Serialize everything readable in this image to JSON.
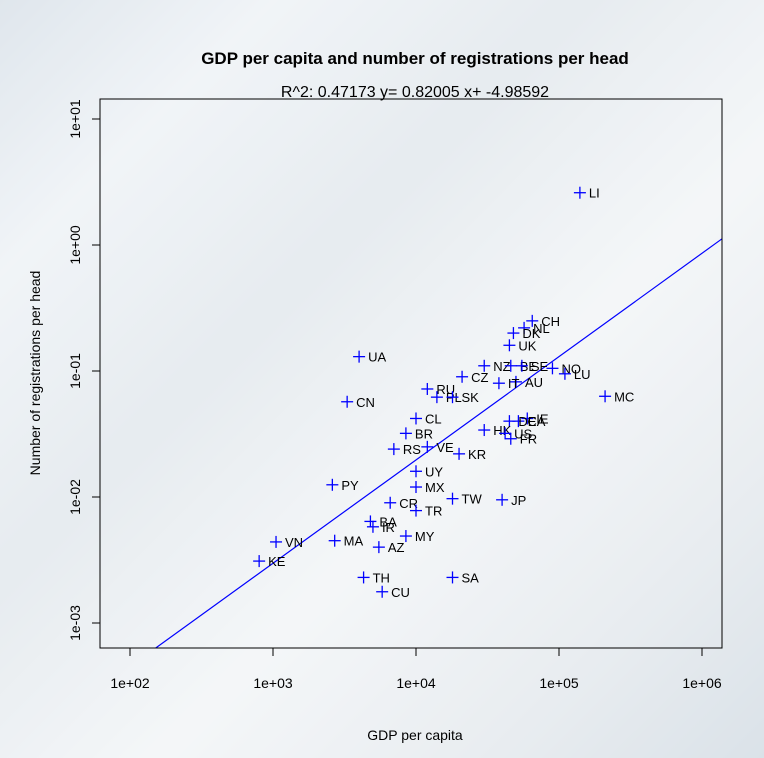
{
  "chart_data": {
    "type": "scatter",
    "title": "GDP per capita and number of registrations per head",
    "subtitle": "R^2: 0.47173 y= 0.82005 x+ -4.98592",
    "xlabel": "GDP per capita",
    "ylabel": "Number of registrations per head",
    "x_scale": "log",
    "y_scale": "log",
    "xlim": [
      100,
      1500000
    ],
    "ylim": [
      0.0011,
      12
    ],
    "x_ticks": [
      "1e+02",
      "1e+03",
      "1e+04",
      "1e+05",
      "1e+06"
    ],
    "y_ticks": [
      "1e-03",
      "1e-02",
      "1e-01",
      "1e+00",
      "1e+01"
    ],
    "grid": false,
    "marker_color": "#0000ff",
    "regression_line": {
      "slope": 0.82005,
      "intercept": -4.98592,
      "color": "#0000ff"
    },
    "points": [
      {
        "label": "LI",
        "x": 140000,
        "y": 2.6
      },
      {
        "label": "CH",
        "x": 65000,
        "y": 0.25
      },
      {
        "label": "NL",
        "x": 57000,
        "y": 0.22
      },
      {
        "label": "DK",
        "x": 48000,
        "y": 0.2
      },
      {
        "label": "UK",
        "x": 45000,
        "y": 0.16
      },
      {
        "label": "UA",
        "x": 4000,
        "y": 0.13
      },
      {
        "label": "NZ",
        "x": 30000,
        "y": 0.11
      },
      {
        "label": "BE",
        "x": 46000,
        "y": 0.11
      },
      {
        "label": "SE",
        "x": 55000,
        "y": 0.11
      },
      {
        "label": "NO",
        "x": 90000,
        "y": 0.105
      },
      {
        "label": "LU",
        "x": 110000,
        "y": 0.095
      },
      {
        "label": "CZ",
        "x": 21000,
        "y": 0.09
      },
      {
        "label": "AU",
        "x": 50000,
        "y": 0.082
      },
      {
        "label": "IT",
        "x": 38000,
        "y": 0.08
      },
      {
        "label": "RU",
        "x": 12000,
        "y": 0.072
      },
      {
        "label": "PL",
        "x": 14000,
        "y": 0.062
      },
      {
        "label": "SK",
        "x": 18000,
        "y": 0.062
      },
      {
        "label": "MC",
        "x": 210000,
        "y": 0.063
      },
      {
        "label": "CN",
        "x": 3300,
        "y": 0.057
      },
      {
        "label": "CL",
        "x": 10000,
        "y": 0.042
      },
      {
        "label": "IE",
        "x": 60000,
        "y": 0.042
      },
      {
        "label": "CA",
        "x": 52000,
        "y": 0.04
      },
      {
        "label": "DE",
        "x": 45000,
        "y": 0.04
      },
      {
        "label": "HK",
        "x": 30000,
        "y": 0.034
      },
      {
        "label": "US",
        "x": 42000,
        "y": 0.032
      },
      {
        "label": "BR",
        "x": 8500,
        "y": 0.032
      },
      {
        "label": "FR",
        "x": 46000,
        "y": 0.029
      },
      {
        "label": "RS",
        "x": 7000,
        "y": 0.024
      },
      {
        "label": "VE",
        "x": 12000,
        "y": 0.025
      },
      {
        "label": "KR",
        "x": 20000,
        "y": 0.022
      },
      {
        "label": "UY",
        "x": 10000,
        "y": 0.016
      },
      {
        "label": "PY",
        "x": 2600,
        "y": 0.0125
      },
      {
        "label": "MX",
        "x": 10000,
        "y": 0.012
      },
      {
        "label": "TW",
        "x": 18000,
        "y": 0.0097
      },
      {
        "label": "JP",
        "x": 40000,
        "y": 0.0095
      },
      {
        "label": "CR",
        "x": 6600,
        "y": 0.009
      },
      {
        "label": "TR",
        "x": 10000,
        "y": 0.0078
      },
      {
        "label": "BA",
        "x": 4800,
        "y": 0.0064
      },
      {
        "label": "IR",
        "x": 5000,
        "y": 0.0058
      },
      {
        "label": "MY",
        "x": 8500,
        "y": 0.0049
      },
      {
        "label": "VN",
        "x": 1050,
        "y": 0.0044
      },
      {
        "label": "MA",
        "x": 2700,
        "y": 0.0045
      },
      {
        "label": "AZ",
        "x": 5500,
        "y": 0.004
      },
      {
        "label": "KE",
        "x": 800,
        "y": 0.0031
      },
      {
        "label": "TH",
        "x": 4300,
        "y": 0.0023
      },
      {
        "label": "SA",
        "x": 18000,
        "y": 0.0023
      },
      {
        "label": "CU",
        "x": 5800,
        "y": 0.00177
      }
    ]
  }
}
